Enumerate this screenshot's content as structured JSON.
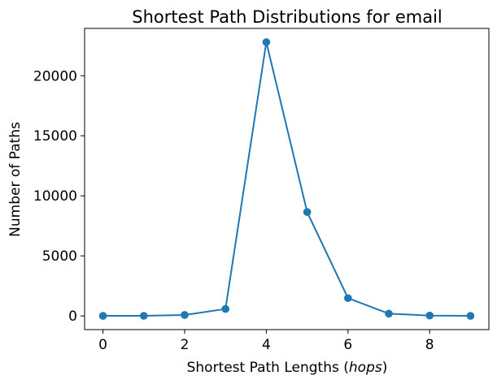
{
  "chart_data": {
    "type": "line",
    "title": "Shortest Path Distributions for email",
    "xlabel_main": "Shortest Path Lengths (",
    "xlabel_italic": "hops",
    "xlabel_close": ")",
    "ylabel": "Number of Paths",
    "x": [
      0,
      1,
      2,
      3,
      4,
      5,
      6,
      7,
      8,
      9
    ],
    "series": [
      {
        "values": [
          5,
          10,
          80,
          580,
          22800,
          8650,
          1480,
          190,
          30,
          5
        ],
        "color": "#1f77b4",
        "marker": "circle"
      }
    ],
    "xlim": [
      -0.45,
      9.45
    ],
    "ylim": [
      -1140,
      23940
    ],
    "xticks": [
      0,
      2,
      4,
      6,
      8
    ],
    "yticks": [
      0,
      5000,
      10000,
      15000,
      20000
    ],
    "grid": false,
    "legend": false
  }
}
